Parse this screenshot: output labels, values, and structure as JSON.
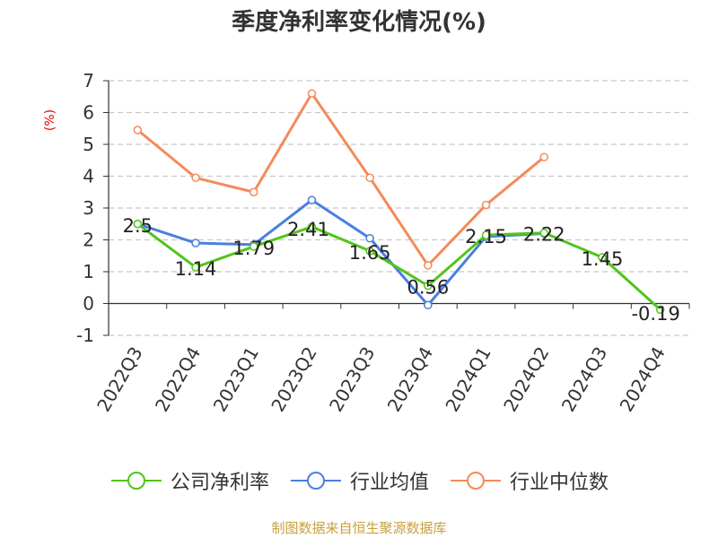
{
  "chart_data": {
    "type": "line",
    "title": "季度净利率变化情况(%)",
    "ylabel": "(%)",
    "categories": [
      "2022Q3",
      "2022Q4",
      "2023Q1",
      "2023Q2",
      "2023Q3",
      "2023Q4",
      "2024Q1",
      "2024Q2",
      "2024Q3",
      "2024Q4"
    ],
    "ylim": [
      -1,
      7
    ],
    "yticks": [
      -1,
      0,
      1,
      2,
      3,
      4,
      5,
      6,
      7
    ],
    "grid": true,
    "legend_position": "bottom",
    "series": [
      {
        "name": "公司净利率",
        "color": "#52c41a",
        "values": [
          2.5,
          1.14,
          1.79,
          2.41,
          1.65,
          0.56,
          2.15,
          2.22,
          1.45,
          -0.19
        ],
        "labels": [
          "2.5",
          "1.14",
          "1.79",
          "2.41",
          "1.65",
          "0.56",
          "2.15",
          "2.22",
          "1.45",
          "-0.19"
        ]
      },
      {
        "name": "行业均值",
        "color": "#4a7fe0",
        "values": [
          2.5,
          1.9,
          1.85,
          3.25,
          2.05,
          -0.05,
          2.1,
          2.2,
          null,
          null
        ]
      },
      {
        "name": "行业中位数",
        "color": "#f58a5a",
        "values": [
          5.45,
          3.95,
          3.5,
          6.6,
          3.95,
          1.2,
          3.1,
          4.6,
          null,
          null
        ]
      }
    ]
  },
  "source": "制图数据来自恒生聚源数据库"
}
